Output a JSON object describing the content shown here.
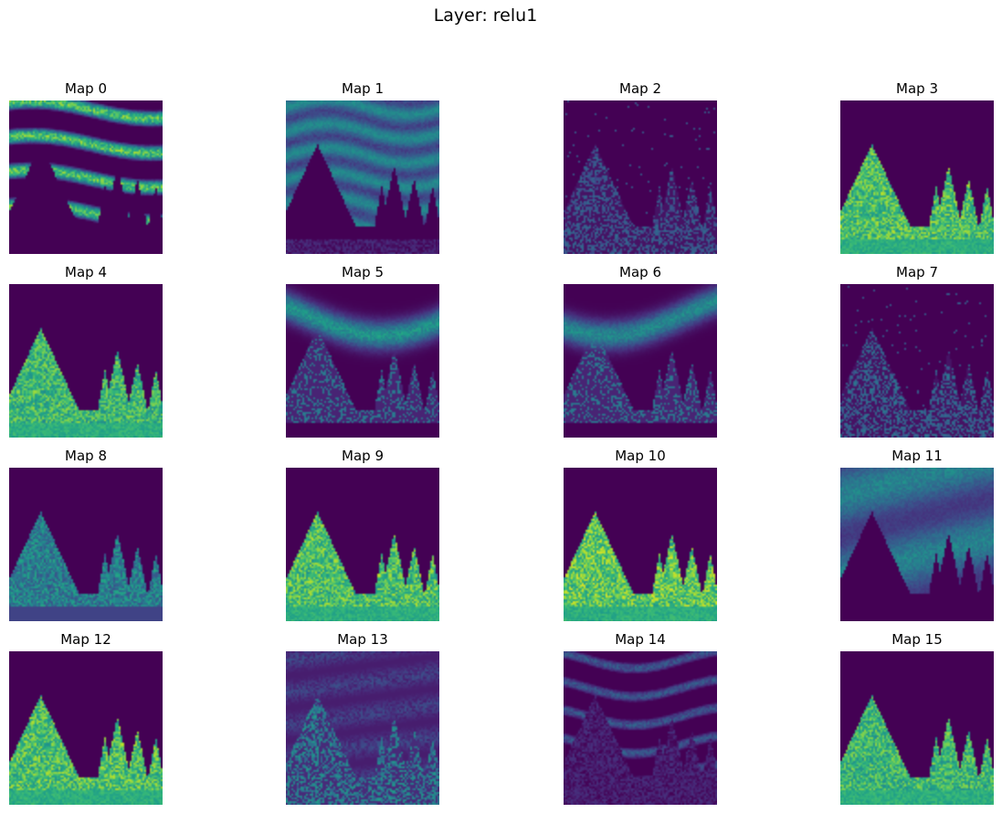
{
  "figure": {
    "title": "Layer: relu1",
    "colormap": "viridis",
    "colors": {
      "low": "#440154",
      "mid": "#21918c",
      "high": "#fde725"
    }
  },
  "chart_data": {
    "type": "heatmap",
    "title": "Layer: relu1",
    "grid": "4x4",
    "axes": "off",
    "maps": [
      {
        "label": "Map 0",
        "pattern": "streaks-bright",
        "strength": 0.9
      },
      {
        "label": "Map 1",
        "pattern": "sky-texture",
        "strength": 0.6
      },
      {
        "label": "Map 2",
        "pattern": "edges-low",
        "strength": 0.35
      },
      {
        "label": "Map 3",
        "pattern": "trees-bright",
        "strength": 0.9
      },
      {
        "label": "Map 4",
        "pattern": "trees-bright",
        "strength": 0.85
      },
      {
        "label": "Map 5",
        "pattern": "clouds-top",
        "strength": 0.6
      },
      {
        "label": "Map 6",
        "pattern": "clouds-top",
        "strength": 0.55
      },
      {
        "label": "Map 7",
        "pattern": "edges-low",
        "strength": 0.4
      },
      {
        "label": "Map 8",
        "pattern": "trees-mid",
        "strength": 0.6
      },
      {
        "label": "Map 9",
        "pattern": "trees-bright",
        "strength": 0.9
      },
      {
        "label": "Map 10",
        "pattern": "trees-bright",
        "strength": 0.95
      },
      {
        "label": "Map 11",
        "pattern": "sky-inverse",
        "strength": 0.65
      },
      {
        "label": "Map 12",
        "pattern": "trees-bright",
        "strength": 0.9
      },
      {
        "label": "Map 13",
        "pattern": "edges-full",
        "strength": 0.45
      },
      {
        "label": "Map 14",
        "pattern": "streaks-mid",
        "strength": 0.5
      },
      {
        "label": "Map 15",
        "pattern": "trees-bright",
        "strength": 0.85
      }
    ]
  }
}
